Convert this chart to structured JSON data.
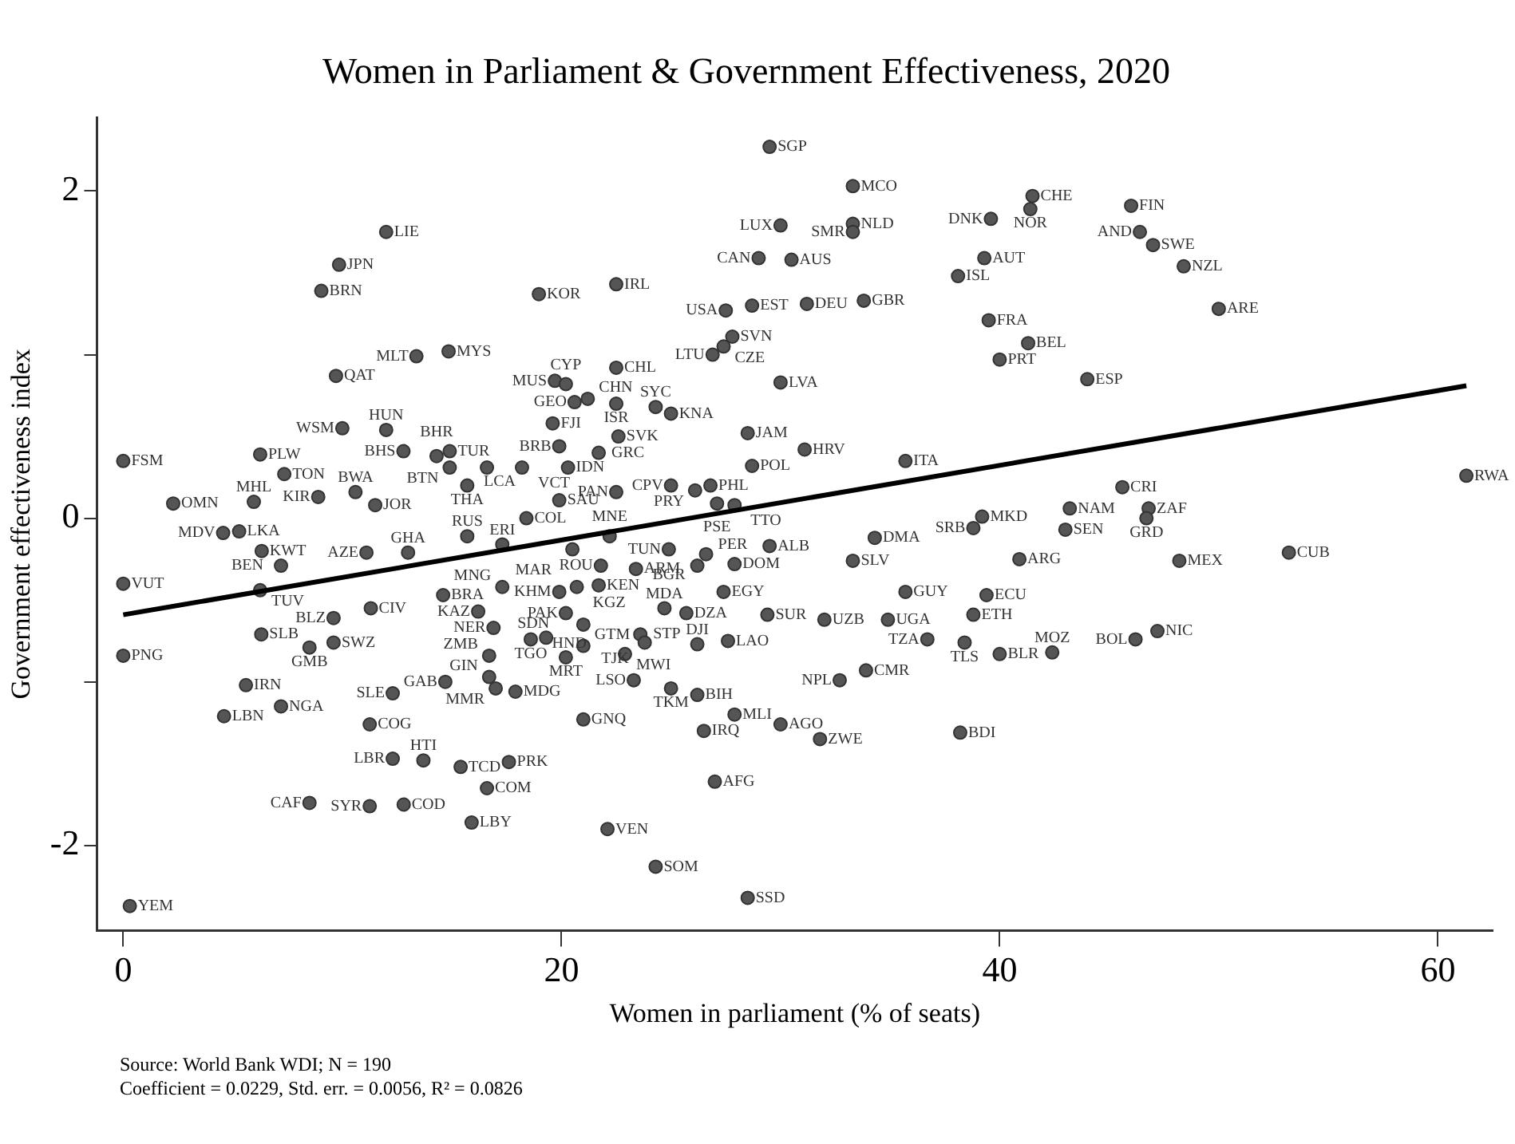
{
  "chart_data": {
    "type": "scatter",
    "title": "Women in Parliament & Government Effectiveness, 2020",
    "xlabel": "Women in parliament (% of seats)",
    "ylabel": "Government effectiveness index",
    "annotations": [
      "Source: World Bank WDI; N = 190",
      "Coefficient = 0.0229, Std. err. = 0.0056, R² = 0.0826"
    ],
    "xlim": [
      -1.2,
      62.5
    ],
    "ylim": [
      -2.52,
      2.45
    ],
    "xticks": [
      0,
      20,
      40,
      60
    ],
    "yticks": [
      2,
      {
        "value": 1,
        "label": null
      },
      0,
      {
        "value": -1,
        "label": null
      },
      -2
    ],
    "grid": false,
    "legend": false,
    "marker": "circle",
    "series": [
      {
        "type": "scatter",
        "color": "#555555",
        "x": [
          12.0,
          9.85,
          9.04,
          18.97,
          13.38,
          14.85,
          9.71,
          10.0,
          12.0,
          0.0,
          6.25,
          7.35,
          12.79,
          14.3,
          14.9,
          14.9,
          16.6,
          18.2,
          15.7,
          2.28,
          5.96,
          8.9,
          10.6,
          11.5,
          18.4,
          19.7,
          20.2,
          20.6,
          21.2,
          22.5,
          24.3,
          25.0,
          19.6,
          19.9,
          20.3,
          19.9,
          29.5,
          33.3,
          30.0,
          33.3,
          33.3,
          29.0,
          30.5,
          22.5,
          27.5,
          28.7,
          31.2,
          33.8,
          27.8,
          27.4,
          26.9,
          30.0,
          22.5,
          22.6,
          21.7,
          28.5,
          31.1,
          28.7,
          35.7,
          22.5,
          25.0,
          26.1,
          26.8,
          27.1,
          27.9,
          39.2,
          38.8,
          39.5,
          41.3,
          40.0,
          38.1,
          39.3,
          39.6,
          41.5,
          41.4,
          46.0,
          46.4,
          47.0,
          48.4,
          50.0,
          44.0,
          61.3,
          45.6,
          43.2,
          46.8,
          46.7,
          43.0,
          48.2,
          53.2,
          46.2,
          47.2,
          42.4,
          22.2,
          20.5,
          24.9,
          26.6,
          26.2,
          27.9,
          29.5,
          21.8,
          23.4,
          19.9,
          20.7,
          21.7,
          27.4,
          24.7,
          25.7,
          29.4,
          32.0,
          34.9,
          21.0,
          20.2,
          23.6,
          23.8,
          21.0,
          20.2,
          22.9,
          26.2,
          27.6,
          23.3,
          25.0,
          26.2,
          32.7,
          33.9,
          21.0,
          27.9,
          26.5,
          30.0,
          31.8,
          38.2,
          27.0,
          22.1,
          24.3,
          28.5,
          34.3,
          33.3,
          40.9,
          35.7,
          39.4,
          38.8,
          36.7,
          38.4,
          40.0,
          4.56,
          5.29,
          6.32,
          7.2,
          0.0,
          6.25,
          11.1,
          13.0,
          15.7,
          17.3,
          17.3,
          14.6,
          11.3,
          9.6,
          16.2,
          16.9,
          18.6,
          19.3,
          6.3,
          8.5,
          9.6,
          0.0,
          16.7,
          14.7,
          16.7,
          17.0,
          17.9,
          12.3,
          5.6,
          7.2,
          4.6,
          11.25,
          12.3,
          13.7,
          15.4,
          17.6,
          16.6,
          8.5,
          11.25,
          12.8,
          15.9,
          0.3
        ],
        "values": [
          1.75,
          1.55,
          1.39,
          1.37,
          0.99,
          1.02,
          0.87,
          0.55,
          0.54,
          0.35,
          0.39,
          0.27,
          0.41,
          0.38,
          0.41,
          0.31,
          0.31,
          0.31,
          0.2,
          0.09,
          0.1,
          0.13,
          0.16,
          0.08,
          0.0,
          0.84,
          0.82,
          0.71,
          0.73,
          0.7,
          0.68,
          0.64,
          0.58,
          0.44,
          0.31,
          0.11,
          2.27,
          2.03,
          1.79,
          1.8,
          1.75,
          1.59,
          1.58,
          1.43,
          1.27,
          1.3,
          1.31,
          1.33,
          1.11,
          1.05,
          1.0,
          0.83,
          0.92,
          0.5,
          0.4,
          0.52,
          0.42,
          0.32,
          0.35,
          0.16,
          0.2,
          0.17,
          0.2,
          0.09,
          0.08,
          0.01,
          -0.06,
          1.21,
          1.07,
          0.97,
          1.48,
          1.59,
          1.83,
          1.97,
          1.89,
          1.91,
          1.75,
          1.67,
          1.54,
          1.28,
          0.85,
          0.26,
          0.19,
          0.06,
          0.06,
          0.0,
          -0.07,
          -0.26,
          -0.21,
          -0.74,
          -0.69,
          -0.82,
          -0.11,
          -0.19,
          -0.19,
          -0.22,
          -0.29,
          -0.28,
          -0.17,
          -0.29,
          -0.31,
          -0.45,
          -0.42,
          -0.41,
          -0.45,
          -0.55,
          -0.58,
          -0.59,
          -0.62,
          -0.62,
          -0.65,
          -0.58,
          -0.71,
          -0.76,
          -0.78,
          -0.85,
          -0.83,
          -0.77,
          -0.75,
          -0.99,
          -1.04,
          -1.08,
          -0.99,
          -0.93,
          -1.23,
          -1.2,
          -1.3,
          -1.26,
          -1.35,
          -1.31,
          -1.61,
          -1.9,
          -2.13,
          -2.32,
          -0.12,
          -0.26,
          -0.25,
          -0.45,
          -0.47,
          -0.59,
          -0.74,
          -0.76,
          -0.83,
          -0.09,
          -0.08,
          -0.2,
          -0.29,
          -0.4,
          -0.44,
          -0.21,
          -0.21,
          -0.11,
          -0.16,
          -0.42,
          -0.47,
          -0.55,
          -0.61,
          -0.57,
          -0.67,
          -0.74,
          -0.73,
          -0.71,
          -0.79,
          -0.76,
          -0.84,
          -0.84,
          -1.0,
          -0.97,
          -1.04,
          -1.06,
          -1.07,
          -1.02,
          -1.15,
          -1.21,
          -1.26,
          -1.47,
          -1.48,
          -1.52,
          -1.49,
          -1.65,
          -1.74,
          -1.76,
          -1.75,
          -1.86,
          -2.37
        ],
        "value_labels": [
          "LIE",
          "JPN",
          "BRN",
          "KOR",
          "MLT",
          "MYS",
          "QAT",
          "WSM",
          "HUN",
          "FSM",
          "PLW",
          "TON",
          "BHS",
          "BHR",
          "TUR",
          "BTN",
          "LCA",
          "VCT",
          "THA",
          "OMN",
          "MHL",
          "KIR",
          "BWA",
          "JOR",
          "COL",
          "MUS",
          "CYP",
          "GEO",
          "CHN",
          "ISR",
          "SYC",
          "KNA",
          "FJI",
          "BRB",
          "IDN",
          "SAU",
          "SGP",
          "MCO",
          "LUX",
          "NLD",
          "SMR",
          "CAN",
          "AUS",
          "IRL",
          "USA",
          "EST",
          "DEU",
          "GBR",
          "SVN",
          "CZE",
          "LTU",
          "LVA",
          "CHL",
          "SVK",
          "GRC",
          "JAM",
          "HRV",
          "POL",
          "ITA",
          "PAN",
          "CPV",
          "PRY",
          "PHL",
          "PSE",
          "TTO",
          "MKD",
          "SRB",
          "FRA",
          "BEL",
          "PRT",
          "ISL",
          "AUT",
          "DNK",
          "CHE",
          "NOR",
          "FIN",
          "AND",
          "SWE",
          "NZL",
          "ARE",
          "ESP",
          "RWA",
          "CRI",
          "NAM",
          "ZAF",
          "GRD",
          "SEN",
          "MEX",
          "CUB",
          "BOL",
          "NIC",
          "MOZ",
          "MNE",
          "MAR",
          "TUN",
          "BGR",
          "PER",
          "DOM",
          "ALB",
          "ROU",
          "ARM",
          "KHM",
          "KGZ",
          "KEN",
          "EGY",
          "MDA",
          "DZA",
          "SUR",
          "UZB",
          "UGA",
          "HND",
          "PAK",
          "STP",
          "TJK",
          "GTM",
          "MRT",
          "MWI",
          "DJI",
          "LAO",
          "LSO",
          "TKM",
          "BIH",
          "NPL",
          "CMR",
          "GNQ",
          "MLI",
          "IRQ",
          "AGO",
          "ZWE",
          "BDI",
          "AFG",
          "VEN",
          "SOM",
          "SSD",
          "DMA",
          "SLV",
          "ARG",
          "GUY",
          "ECU",
          "ETH",
          "TZA",
          "TLS",
          "BLR",
          "MDV",
          "LKA",
          "KWT",
          "BEN",
          "VUT",
          "TUV",
          "AZE",
          "GHA",
          "RUS",
          "ERI",
          "MNG",
          "BRA",
          "CIV",
          "BLZ",
          "KAZ",
          "NER",
          "TGO",
          "SDN",
          "SLB",
          "GMB",
          "SWZ",
          "PNG",
          "ZMB",
          "GAB",
          "GIN",
          "MMR",
          "MDG",
          "SLE",
          "IRN",
          "NGA",
          "LBN",
          "COG",
          "LBR",
          "HTI",
          "TCD",
          "PRK",
          "COM",
          "CAF",
          "SYR",
          "COD",
          "LBY",
          "YEM"
        ]
      },
      {
        "type": "line",
        "color": "#000000",
        "marker": "none",
        "x": [
          0,
          61.3
        ],
        "values": [
          -0.59,
          0.81
        ]
      }
    ]
  }
}
